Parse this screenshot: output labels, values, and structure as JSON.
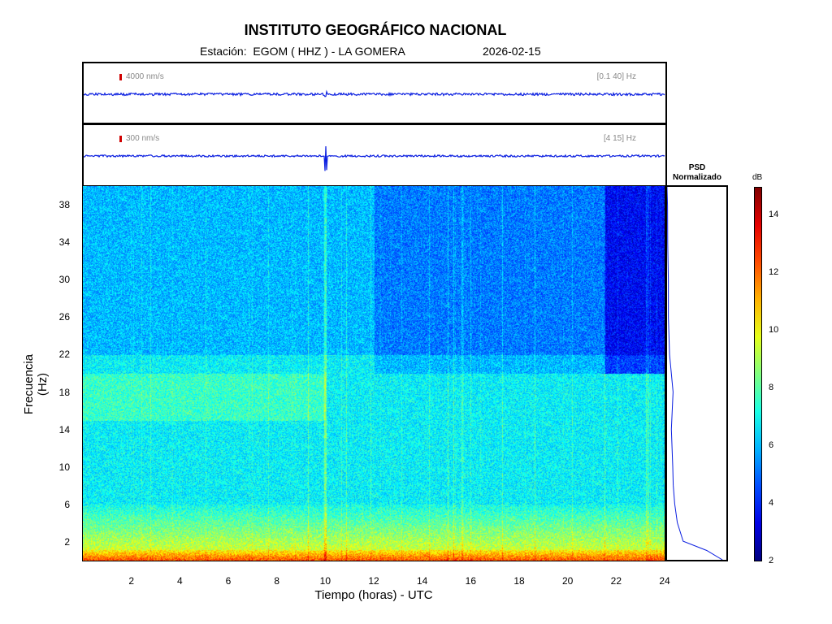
{
  "header": {
    "title": "INSTITUTO GEOGRÁFICO NACIONAL",
    "station": "Estación:  EGOM ( HHZ ) - LA GOMERA",
    "date": "2026-02-15"
  },
  "traces": [
    {
      "scale_label": "4000 nm/s",
      "band_label": "[0.1 40] Hz"
    },
    {
      "scale_label": "300 nm/s",
      "band_label": "[4 15] Hz"
    }
  ],
  "psd": {
    "title_line1": "PSD",
    "title_line2": "Normalizado"
  },
  "colorbar": {
    "label": "dB",
    "ticks": [
      "14",
      "12",
      "10",
      "8",
      "6",
      "4",
      "2"
    ],
    "range": [
      2,
      15
    ]
  },
  "chart_data": {
    "type": "heatmap",
    "title": "INSTITUTO GEOGRÁFICO NACIONAL",
    "xlabel": "Tiempo (horas) - UTC",
    "ylabel": "Frecuencia  (Hz)",
    "xlim": [
      0,
      24
    ],
    "ylim": [
      0,
      40
    ],
    "xticks": [
      "2",
      "4",
      "6",
      "8",
      "10",
      "12",
      "14",
      "16",
      "18",
      "20",
      "22",
      "24"
    ],
    "yticks": [
      "2",
      "6",
      "10",
      "14",
      "18",
      "22",
      "26",
      "30",
      "34",
      "38"
    ],
    "colorbar_label": "dB",
    "colorbar_range": [
      2,
      15
    ],
    "description_bands": [
      {
        "freq_range": [
          0,
          1
        ],
        "level_db": 12.5
      },
      {
        "freq_range": [
          1,
          5
        ],
        "level_db": 8.5
      },
      {
        "freq_range": [
          5,
          22
        ],
        "level_db": 6.8
      },
      {
        "freq_range": [
          22,
          40
        ],
        "level_db": 6.0
      }
    ],
    "event_hour": 10.0,
    "psd_profile": {
      "freq": [
        0,
        1,
        2,
        4,
        6,
        8,
        10,
        14,
        18,
        22,
        26,
        30,
        34,
        38,
        40
      ],
      "value": [
        1.0,
        0.7,
        0.3,
        0.18,
        0.14,
        0.12,
        0.11,
        0.09,
        0.1,
        0.06,
        0.03,
        0.015,
        0.01,
        0.01,
        0.01
      ]
    }
  }
}
